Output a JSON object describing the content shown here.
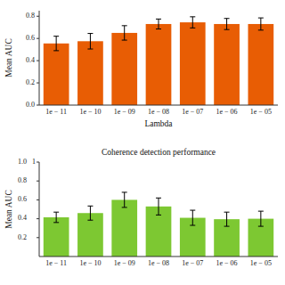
{
  "chart_data": [
    {
      "type": "bar",
      "xlabel": "Lambda",
      "ylabel": "Mean AUC",
      "categories": [
        "1e − 11",
        "1e − 10",
        "1e − 09",
        "1e − 08",
        "1e − 07",
        "1e − 06",
        "1e − 05"
      ],
      "values": [
        0.555,
        0.575,
        0.65,
        0.73,
        0.745,
        0.73,
        0.73
      ],
      "errors": [
        0.065,
        0.07,
        0.065,
        0.045,
        0.05,
        0.05,
        0.055
      ],
      "color": "#E85D04",
      "ylim": [
        0,
        0.85
      ],
      "yticks": [
        {
          "value": 0,
          "label": "0.0"
        },
        0.2,
        0.4,
        0.6,
        0.8
      ]
    },
    {
      "type": "bar",
      "title": "Coherence detection performance",
      "ylabel": "Mean AUC",
      "categories": [
        "1e − 11",
        "1e − 10",
        "1e − 09",
        "1e − 08",
        "1e − 07",
        "1e − 06",
        "1e − 05"
      ],
      "values": [
        0.415,
        0.46,
        0.6,
        0.53,
        0.41,
        0.395,
        0.4
      ],
      "errors": [
        0.055,
        0.075,
        0.08,
        0.09,
        0.08,
        0.075,
        0.08
      ],
      "color": "#7DC832",
      "ylim": [
        0,
        1.0
      ],
      "yticks": [
        0.2,
        0.4,
        0.6,
        0.8,
        {
          "value": 1.0,
          "label": "1.0"
        }
      ],
      "annotations": [
        {
          "text": "1",
          "y": 1.0
        }
      ]
    }
  ]
}
